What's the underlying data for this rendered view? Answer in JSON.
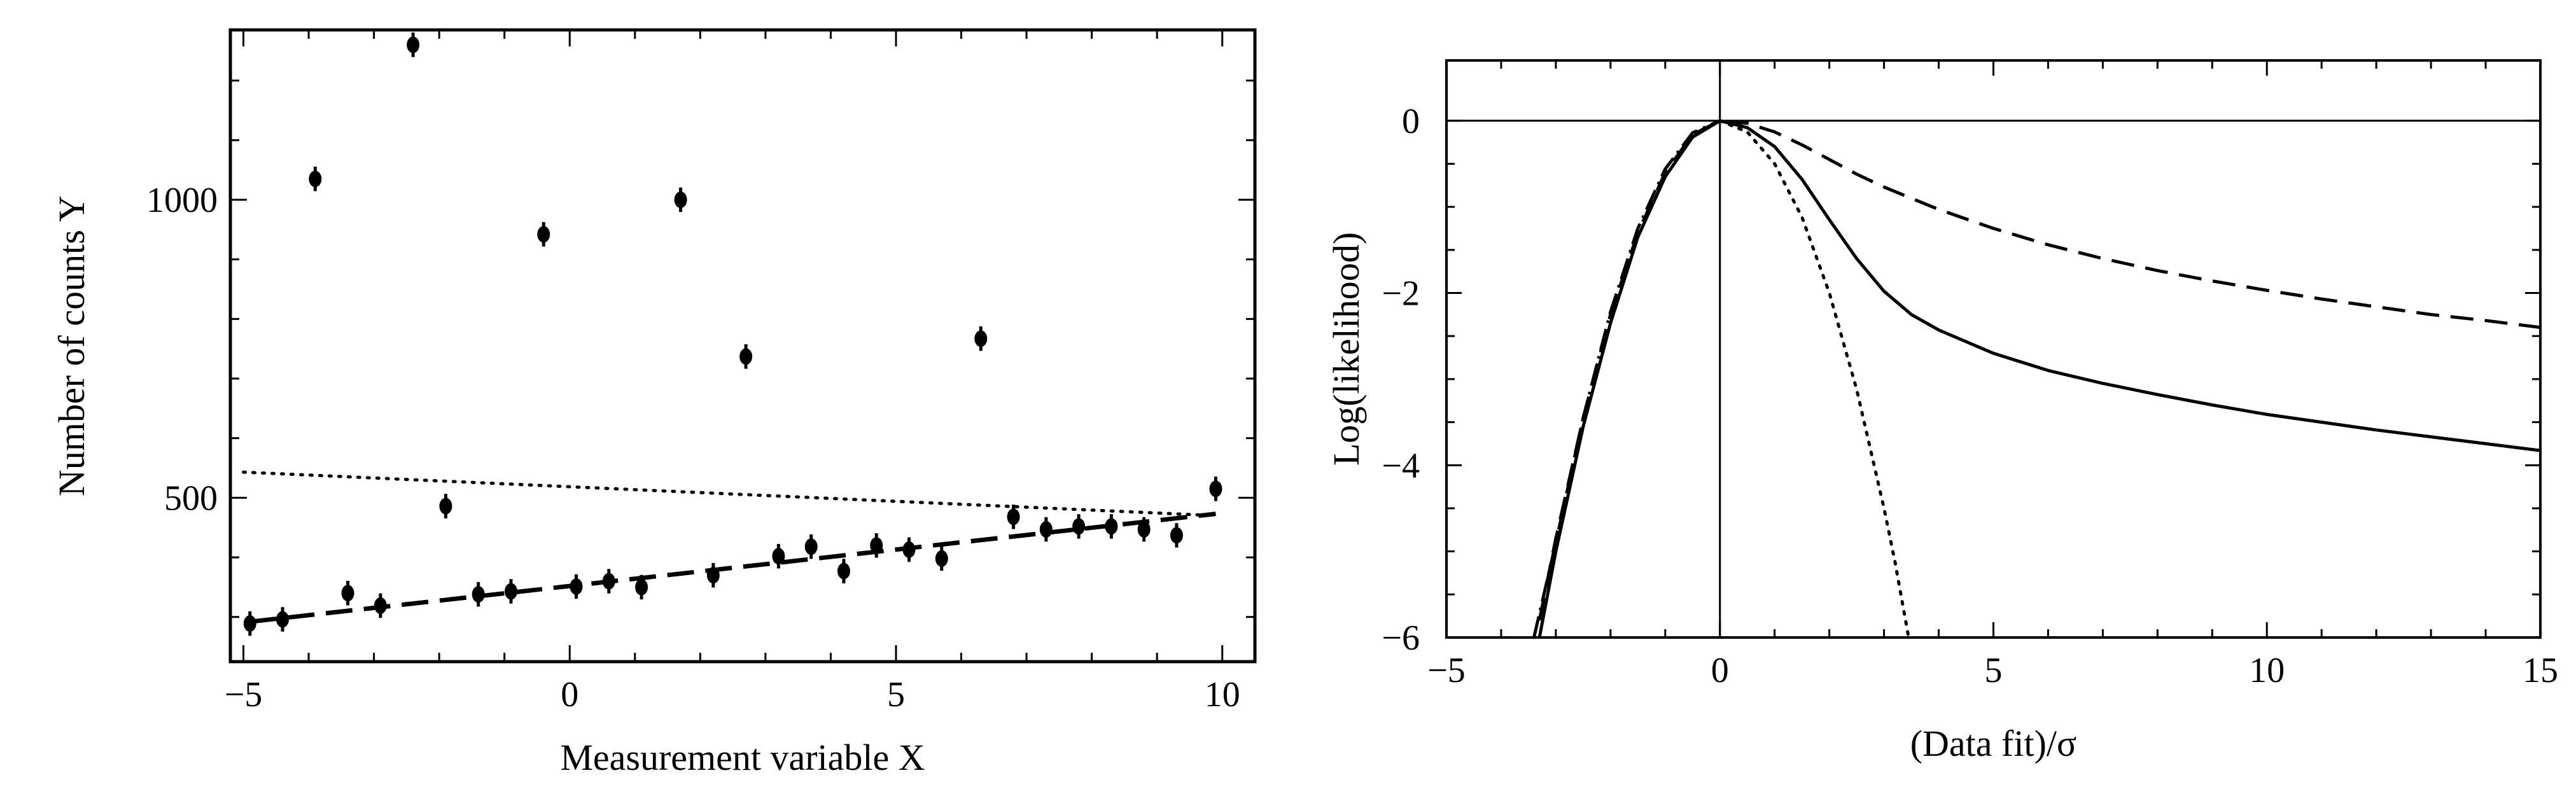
{
  "chart_data": [
    {
      "type": "scatter",
      "xlabel": "Measurement variable X",
      "ylabel": "Number of counts Y",
      "xlim": [
        -5.2,
        10.5
      ],
      "ylim": [
        225,
        1285
      ],
      "x_ticks": [
        -5,
        0,
        5,
        10
      ],
      "y_ticks": [
        500,
        1000
      ],
      "x_tick_labels": [
        "−5",
        "0",
        "5",
        "10"
      ],
      "y_tick_labels": [
        "500",
        "1000"
      ],
      "grid": false,
      "series": [
        {
          "marker": "filled-circle-with-error-bars",
          "points": [
            {
              "x": -4.9,
              "y": 289,
              "err": 12
            },
            {
              "x": -4.4,
              "y": 296,
              "err": 12
            },
            {
              "x": -3.9,
              "y": 1035,
              "err": 12
            },
            {
              "x": -3.4,
              "y": 340,
              "err": 12
            },
            {
              "x": -2.9,
              "y": 319,
              "err": 12
            },
            {
              "x": -2.4,
              "y": 1260,
              "err": 12
            },
            {
              "x": -1.9,
              "y": 486,
              "err": 12
            },
            {
              "x": -1.4,
              "y": 338,
              "err": 12
            },
            {
              "x": -0.9,
              "y": 343,
              "err": 12
            },
            {
              "x": -0.4,
              "y": 942,
              "err": 12
            },
            {
              "x": 0.1,
              "y": 351,
              "err": 12
            },
            {
              "x": 0.6,
              "y": 360,
              "err": 12
            },
            {
              "x": 1.1,
              "y": 350,
              "err": 12
            },
            {
              "x": 1.7,
              "y": 1000,
              "err": 12
            },
            {
              "x": 2.2,
              "y": 370,
              "err": 12
            },
            {
              "x": 2.7,
              "y": 737,
              "err": 12
            },
            {
              "x": 3.2,
              "y": 402,
              "err": 12
            },
            {
              "x": 3.7,
              "y": 418,
              "err": 12
            },
            {
              "x": 4.2,
              "y": 377,
              "err": 12
            },
            {
              "x": 4.7,
              "y": 420,
              "err": 12
            },
            {
              "x": 5.2,
              "y": 413,
              "err": 12
            },
            {
              "x": 5.7,
              "y": 398,
              "err": 12
            },
            {
              "x": 6.3,
              "y": 767,
              "err": 12
            },
            {
              "x": 6.8,
              "y": 468,
              "err": 12
            },
            {
              "x": 7.3,
              "y": 447,
              "err": 12
            },
            {
              "x": 7.8,
              "y": 452,
              "err": 12
            },
            {
              "x": 8.3,
              "y": 452,
              "err": 12
            },
            {
              "x": 8.8,
              "y": 447,
              "err": 12
            },
            {
              "x": 9.3,
              "y": 437,
              "err": 12
            },
            {
              "x": 9.9,
              "y": 515,
              "err": 12
            }
          ]
        }
      ],
      "lines": [
        {
          "style": "dotted",
          "x": [
            -5,
            9.9
          ],
          "y": [
            543,
            470
          ]
        },
        {
          "style": "dashed",
          "x": [
            -4.9,
            9.9
          ],
          "y": [
            292,
            473
          ]
        }
      ]
    },
    {
      "type": "line",
      "xlabel": "(Data fit)/σ",
      "ylabel": "Log(likelihood)",
      "xlim": [
        -5,
        15
      ],
      "ylim": [
        -6,
        0.7
      ],
      "x_ticks": [
        -5,
        0,
        5,
        10,
        15
      ],
      "y_ticks": [
        0,
        -2,
        -4,
        -6
      ],
      "x_tick_labels": [
        "−5",
        "0",
        "5",
        "10",
        "15"
      ],
      "y_tick_labels": [
        "0",
        "−2",
        "−4",
        "−6"
      ],
      "reference_lines": {
        "horizontal": 0,
        "vertical": 0
      },
      "grid": false,
      "series": [
        {
          "style": "solid",
          "x": [
            -3.3,
            -3,
            -2.5,
            -2,
            -1.5,
            -1,
            -0.5,
            0,
            0.5,
            1,
            1.5,
            2,
            2.5,
            3,
            3.5,
            4,
            5,
            6,
            7,
            8,
            9,
            10,
            11,
            12,
            13,
            14,
            15
          ],
          "y": [
            -6,
            -5.0,
            -3.55,
            -2.35,
            -1.35,
            -0.65,
            -0.19,
            0,
            -0.08,
            -0.3,
            -0.68,
            -1.15,
            -1.6,
            -1.98,
            -2.25,
            -2.43,
            -2.7,
            -2.9,
            -3.05,
            -3.18,
            -3.3,
            -3.41,
            -3.5,
            -3.59,
            -3.67,
            -3.75,
            -3.83
          ]
        },
        {
          "style": "dashed",
          "x": [
            -3.3,
            -3,
            -2.5,
            -2,
            -1.5,
            -1,
            -0.5,
            0,
            0.5,
            1,
            1.5,
            2,
            2.5,
            3,
            4,
            5,
            6,
            7,
            8,
            9,
            10,
            11,
            12,
            13,
            14,
            15
          ],
          "y": [
            -5.8,
            -4.85,
            -3.45,
            -2.25,
            -1.3,
            -0.6,
            -0.16,
            0,
            -0.03,
            -0.13,
            -0.28,
            -0.45,
            -0.62,
            -0.77,
            -1.03,
            -1.25,
            -1.44,
            -1.6,
            -1.74,
            -1.86,
            -1.97,
            -2.07,
            -2.16,
            -2.25,
            -2.32,
            -2.4
          ]
        },
        {
          "style": "dashdot",
          "x": [
            -3.4,
            -3,
            -2.5,
            -2,
            -1.5,
            -1,
            -0.5,
            0
          ],
          "y": [
            -6,
            -4.9,
            -3.45,
            -2.22,
            -1.25,
            -0.56,
            -0.14,
            0
          ]
        },
        {
          "style": "dotted",
          "x": [
            0,
            0.5,
            1,
            1.5,
            2,
            2.5,
            3,
            3.2,
            3.45
          ],
          "y": [
            0,
            -0.13,
            -0.5,
            -1.12,
            -2.0,
            -3.12,
            -4.5,
            -5.12,
            -6
          ]
        }
      ]
    }
  ]
}
